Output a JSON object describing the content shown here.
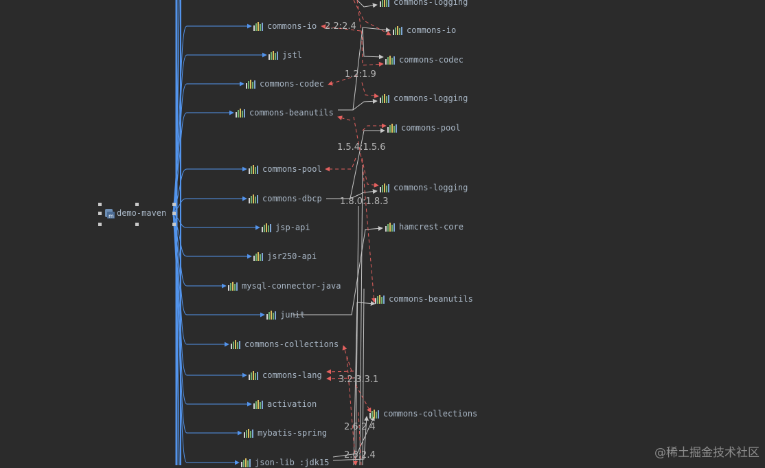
{
  "root": {
    "label": "demo-maven",
    "icon": "maven-module-icon"
  },
  "colors": {
    "background": "#2b2b2b",
    "direct_edge": "#5394ec",
    "transitive_edge": "#c8c8c8",
    "conflict_edge": "#e5615f",
    "node_text": "#a9b7c6"
  },
  "icons": {
    "dependency": "library-bars-icon",
    "module": "maven-module-icon"
  },
  "direct_dependencies": [
    {
      "id": "commons-io-1",
      "label": "commons-io"
    },
    {
      "id": "jstl",
      "label": "jstl"
    },
    {
      "id": "commons-codec-1",
      "label": "commons-codec"
    },
    {
      "id": "commons-beanutils-1",
      "label": "commons-beanutils"
    },
    {
      "id": "commons-pool-1",
      "label": "commons-pool"
    },
    {
      "id": "commons-dbcp",
      "label": "commons-dbcp"
    },
    {
      "id": "jsp-api",
      "label": "jsp-api"
    },
    {
      "id": "jsr250-api",
      "label": "jsr250-api"
    },
    {
      "id": "mysql-connector-java",
      "label": "mysql-connector-java"
    },
    {
      "id": "junit",
      "label": "junit"
    },
    {
      "id": "commons-collections-1",
      "label": "commons-collections"
    },
    {
      "id": "commons-lang",
      "label": "commons-lang"
    },
    {
      "id": "activation",
      "label": "activation"
    },
    {
      "id": "mybatis-spring",
      "label": "mybatis-spring"
    },
    {
      "id": "json-lib",
      "label": "json-lib :jdk15"
    }
  ],
  "transitive_dependencies": [
    {
      "id": "commons-logging-top",
      "label": "commons-logging"
    },
    {
      "id": "commons-io-2",
      "label": "commons-io"
    },
    {
      "id": "commons-codec-2",
      "label": "commons-codec"
    },
    {
      "id": "commons-logging-2",
      "label": "commons-logging"
    },
    {
      "id": "commons-pool-2",
      "label": "commons-pool"
    },
    {
      "id": "commons-logging-3",
      "label": "commons-logging"
    },
    {
      "id": "hamcrest-core",
      "label": "hamcrest-core"
    },
    {
      "id": "commons-beanutils-2",
      "label": "commons-beanutils"
    },
    {
      "id": "commons-collections-2",
      "label": "commons-collections"
    }
  ],
  "version_conflicts": [
    {
      "text": "2.2:2.4"
    },
    {
      "text": "1.2:1.9"
    },
    {
      "text": "1.5.4:1.5.6"
    },
    {
      "text": "1.8.0:1.8.3"
    },
    {
      "text": "3.2:3.3.1"
    },
    {
      "text": "2.6:2.4"
    },
    {
      "text": "2.6:2.4"
    }
  ],
  "watermark": "@稀土掘金技术社区"
}
